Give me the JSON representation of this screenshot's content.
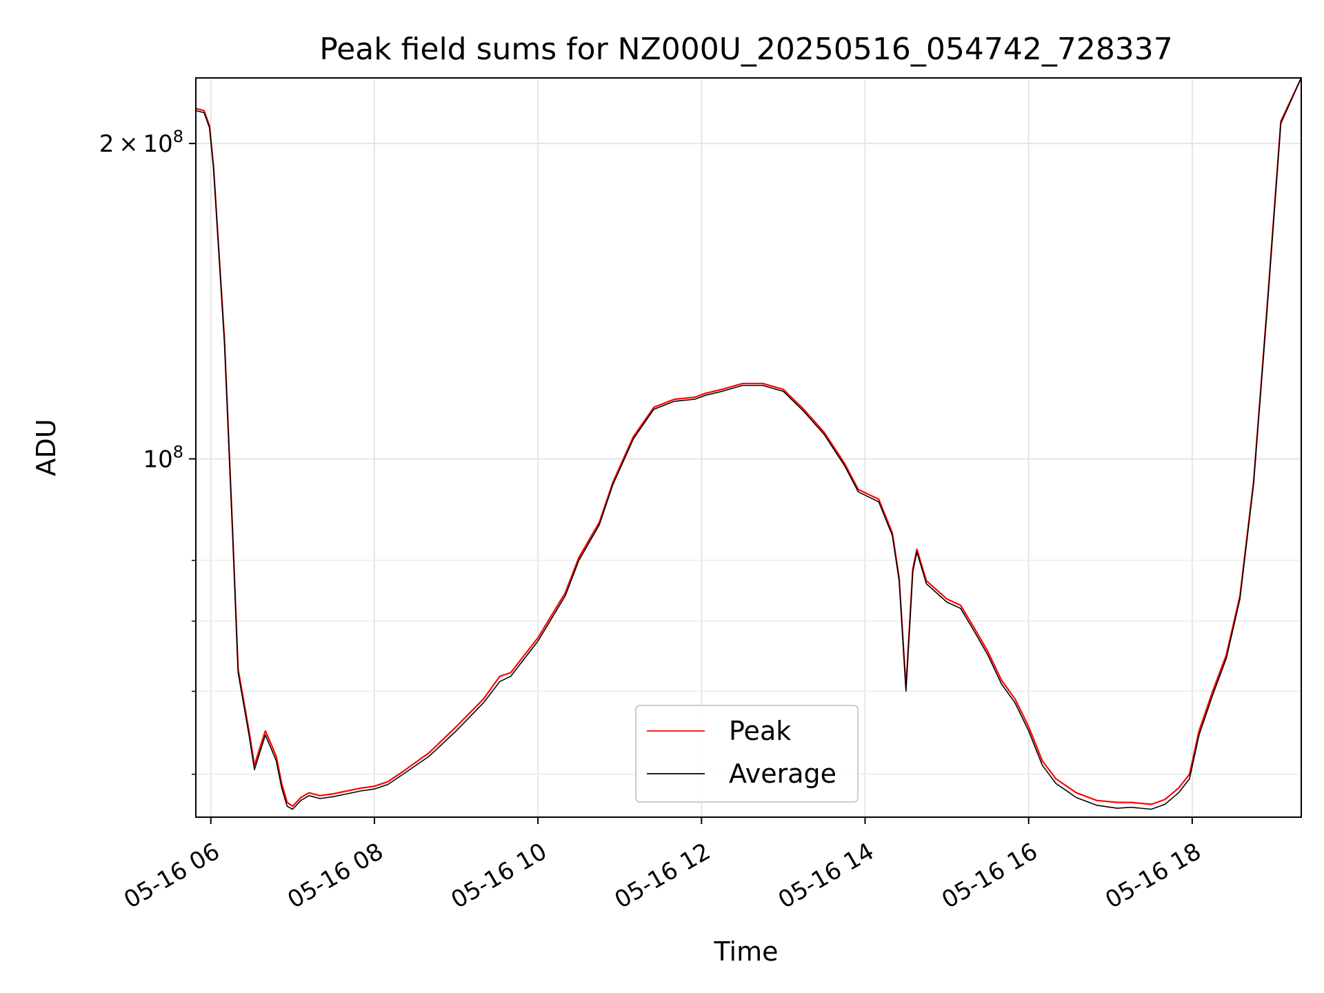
{
  "chart_data": {
    "type": "line",
    "title": "Peak field sums for NZ000U_20250516_054742_728337",
    "xlabel": "Time",
    "ylabel": "ADU",
    "y_scale": "log",
    "ylim": [
      45500000,
      231000000
    ],
    "xlim": [
      "2025-05-16 05:49",
      "2025-05-16 19:20"
    ],
    "x_tick_labels": [
      "05-16 06",
      "05-16 08",
      "05-16 10",
      "05-16 12",
      "05-16 14",
      "05-16 16",
      "05-16 18"
    ],
    "x_tick_times": [
      "2025-05-16 06:00",
      "2025-05-16 08:00",
      "2025-05-16 10:00",
      "2025-05-16 12:00",
      "2025-05-16 14:00",
      "2025-05-16 16:00",
      "2025-05-16 18:00"
    ],
    "y_major_ticks": [
      {
        "value": 100000000,
        "mantissa": "",
        "exponent": "8"
      },
      {
        "value": 200000000,
        "mantissa": "2",
        "exponent": "8"
      }
    ],
    "y_minor_ticks": [
      50000000,
      60000000,
      70000000,
      80000000
    ],
    "grid": true,
    "legend_position": "lower-center",
    "x": [
      "2025-05-16 05:49",
      "2025-05-16 05:55",
      "2025-05-16 05:59",
      "2025-05-16 06:02",
      "2025-05-16 06:10",
      "2025-05-16 06:16",
      "2025-05-16 06:20",
      "2025-05-16 06:28",
      "2025-05-16 06:32",
      "2025-05-16 06:36",
      "2025-05-16 06:40",
      "2025-05-16 06:44",
      "2025-05-16 06:48",
      "2025-05-16 06:52",
      "2025-05-16 06:56",
      "2025-05-16 07:00",
      "2025-05-16 07:06",
      "2025-05-16 07:12",
      "2025-05-16 07:20",
      "2025-05-16 07:30",
      "2025-05-16 07:40",
      "2025-05-16 07:50",
      "2025-05-16 08:00",
      "2025-05-16 08:10",
      "2025-05-16 08:20",
      "2025-05-16 08:40",
      "2025-05-16 09:00",
      "2025-05-16 09:20",
      "2025-05-16 09:32",
      "2025-05-16 09:40",
      "2025-05-16 10:00",
      "2025-05-16 10:20",
      "2025-05-16 10:30",
      "2025-05-16 10:45",
      "2025-05-16 10:55",
      "2025-05-16 11:10",
      "2025-05-16 11:25",
      "2025-05-16 11:40",
      "2025-05-16 11:55",
      "2025-05-16 12:03",
      "2025-05-16 12:15",
      "2025-05-16 12:30",
      "2025-05-16 12:45",
      "2025-05-16 13:00",
      "2025-05-16 13:15",
      "2025-05-16 13:30",
      "2025-05-16 13:45",
      "2025-05-16 13:55",
      "2025-05-16 14:10",
      "2025-05-16 14:20",
      "2025-05-16 14:25",
      "2025-05-16 14:30",
      "2025-05-16 14:35",
      "2025-05-16 14:38",
      "2025-05-16 14:45",
      "2025-05-16 15:00",
      "2025-05-16 15:10",
      "2025-05-16 15:20",
      "2025-05-16 15:30",
      "2025-05-16 15:40",
      "2025-05-16 15:50",
      "2025-05-16 16:00",
      "2025-05-16 16:10",
      "2025-05-16 16:20",
      "2025-05-16 16:35",
      "2025-05-16 16:50",
      "2025-05-16 17:05",
      "2025-05-16 17:15",
      "2025-05-16 17:30",
      "2025-05-16 17:40",
      "2025-05-16 17:50",
      "2025-05-16 17:58",
      "2025-05-16 18:05",
      "2025-05-16 18:15",
      "2025-05-16 18:25",
      "2025-05-16 18:35",
      "2025-05-16 18:45",
      "2025-05-16 18:55",
      "2025-05-16 19:05",
      "2025-05-16 19:20"
    ],
    "series": [
      {
        "name": "Peak",
        "color": "#ff0000",
        "values": [
          216000000,
          215000000,
          208000000,
          190000000,
          130000000,
          85000000,
          63000000,
          55000000,
          51000000,
          53000000,
          55000000,
          53500000,
          52000000,
          49000000,
          47000000,
          46600000,
          47500000,
          48000000,
          47700000,
          47900000,
          48200000,
          48500000,
          48700000,
          49200000,
          50200000,
          52400000,
          55500000,
          59000000,
          62000000,
          62500000,
          67500000,
          74500000,
          80500000,
          87000000,
          95000000,
          105000000,
          112000000,
          114000000,
          114500000,
          115500000,
          116500000,
          118000000,
          118000000,
          116500000,
          111500000,
          106000000,
          99000000,
          93500000,
          91500000,
          85000000,
          77000000,
          60500000,
          78500000,
          82000000,
          76500000,
          73500000,
          72500000,
          69000000,
          65500000,
          61500000,
          59000000,
          55500000,
          51500000,
          49500000,
          48000000,
          47200000,
          47000000,
          47000000,
          46800000,
          47300000,
          48500000,
          50000000,
          55000000,
          60000000,
          65000000,
          74000000,
          95000000,
          140000000,
          210000000,
          231000000
        ]
      },
      {
        "name": "Average",
        "color": "#000000",
        "values": [
          215000000,
          214000000,
          207000000,
          189000000,
          129000000,
          84500000,
          62500000,
          54500000,
          50500000,
          52500000,
          54500000,
          53000000,
          51500000,
          48500000,
          46600000,
          46300000,
          47200000,
          47700000,
          47400000,
          47600000,
          47900000,
          48200000,
          48400000,
          48900000,
          49900000,
          52000000,
          55000000,
          58500000,
          61300000,
          62000000,
          67000000,
          74000000,
          80000000,
          86500000,
          94500000,
          104500000,
          111500000,
          113500000,
          114000000,
          115000000,
          116000000,
          117500000,
          117500000,
          116000000,
          111000000,
          105500000,
          98500000,
          93000000,
          91000000,
          84500000,
          76500000,
          60000000,
          78000000,
          81500000,
          76000000,
          73000000,
          72000000,
          68500000,
          65000000,
          61000000,
          58500000,
          55000000,
          51000000,
          49000000,
          47500000,
          46700000,
          46400000,
          46500000,
          46300000,
          46800000,
          48000000,
          49500000,
          54500000,
          59500000,
          64500000,
          73500000,
          94500000,
          139000000,
          209000000,
          231000000
        ]
      }
    ]
  }
}
